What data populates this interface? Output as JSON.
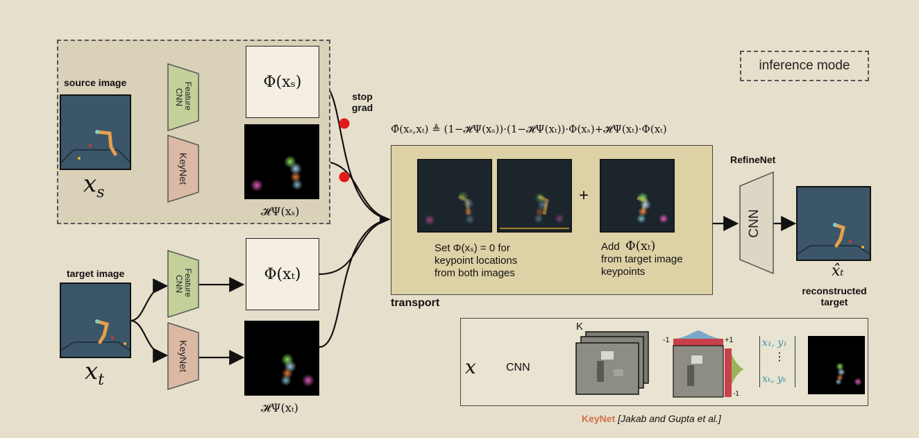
{
  "labels": {
    "source_image": "source image",
    "target_image": "target image",
    "x_s": "x",
    "x_s_sub": "s",
    "x_t": "x",
    "x_t_sub": "t",
    "feature_cnn": "Feature CNN",
    "keynet": "KeyNet",
    "phi_xs": "Φ(xₛ)",
    "phi_xt": "Φ(xₜ)",
    "h_xs": "𝓗Ψ(xₛ)",
    "h_xt": "𝓗Ψ(xₜ)",
    "stop_grad": "stop grad",
    "inference_mode": "inference mode",
    "formula": "Φ̂(xₛ,xₜ) ≜ (1−𝓗Ψ(xₛ))·(1−𝓗Ψ(xₜ))·Φ(xₛ)+𝓗Ψ(xₜ)·Φ(xₜ)",
    "plus": "+",
    "set_line1": "Set Φ(xₛ) = 0 for",
    "set_line2": "keypoint locations",
    "set_line3": "from both images",
    "add_line1": "Add",
    "add_math": "Φ(xₜ)",
    "add_line2": "from target image",
    "add_line3": "keypoints",
    "transport": "transport",
    "refinenet": "RefineNet",
    "cnn": "CNN",
    "x_hat_t": "x̂ₜ",
    "reconstructed_1": "reconstructed",
    "reconstructed_2": "target",
    "kn_x": "x",
    "kn_cnn": "CNN",
    "kn_K": "K",
    "kn_minus1": "-1",
    "kn_plus1": "+1",
    "kn_minus1b": "-1",
    "kn_coord1": "x₁, y₁",
    "kn_coordk": "xₖ, yₖ",
    "kn_dots": "⋮",
    "caption_keynet": "KeyNet",
    "caption_rest": " [Jakab and Gupta et al.]"
  },
  "colors": {
    "background": "#e6dfcb",
    "feature_cnn": "#c3d09a",
    "keynet": "#dcb9a4",
    "refinenet_cnn": "#dcd6c5",
    "stop_dot": "#e21a1a",
    "keynet_caption": "#d2714a"
  }
}
